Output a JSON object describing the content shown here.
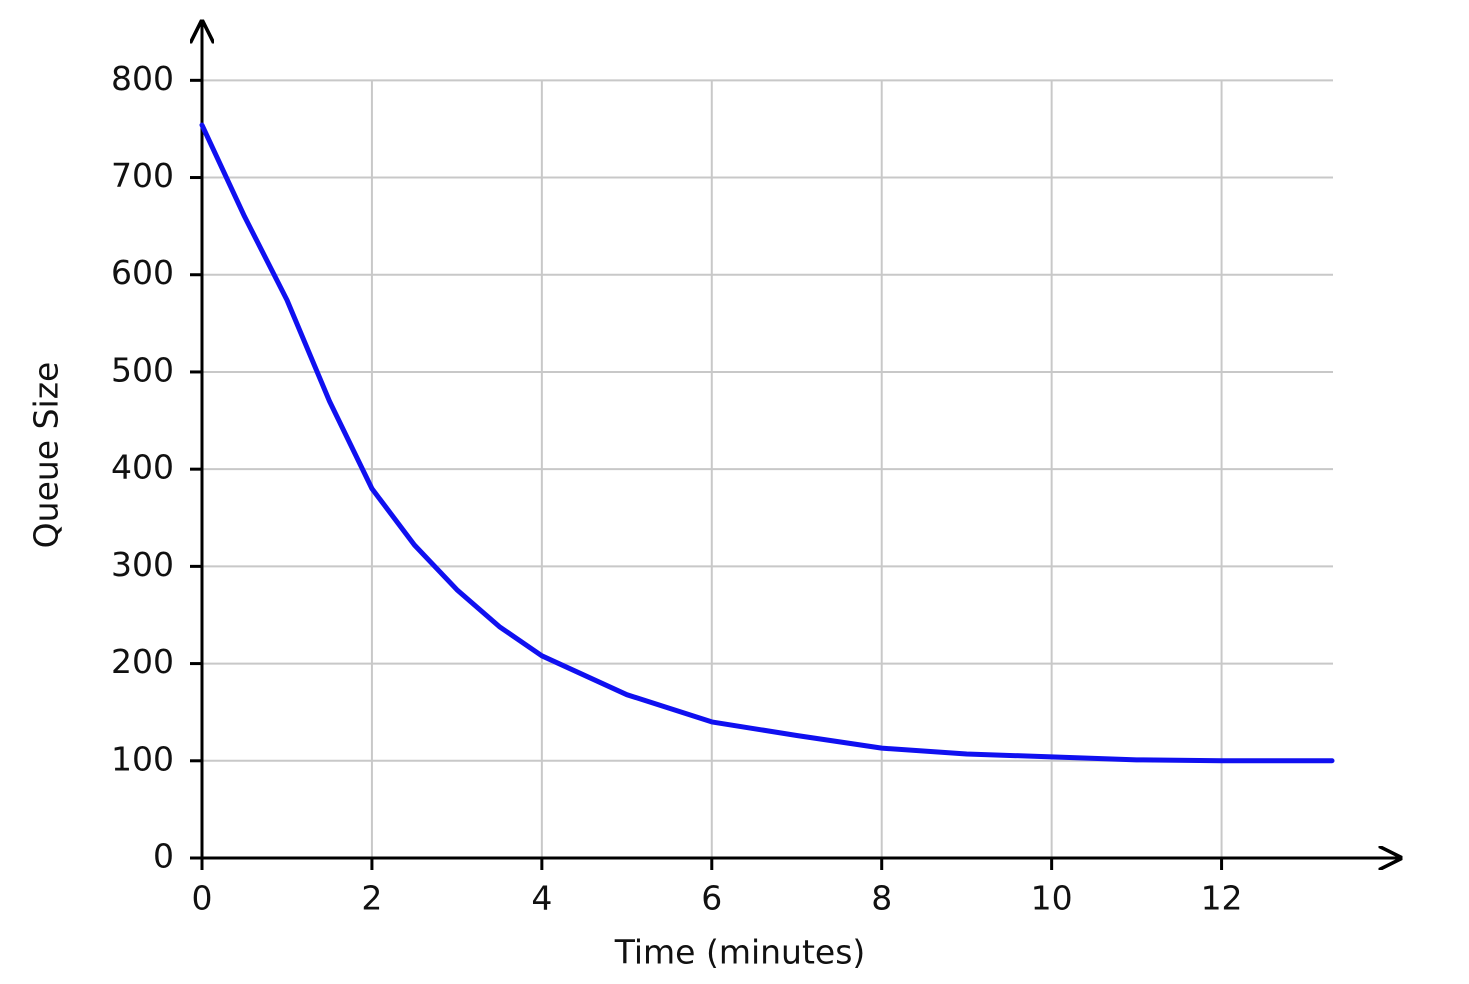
{
  "chart_data": {
    "type": "line",
    "x_label": "Time (minutes)",
    "y_label": "Queue Size",
    "x": [
      0,
      0.5,
      1,
      1.5,
      2,
      2.5,
      3,
      3.5,
      4,
      5,
      6,
      7,
      8,
      9,
      10,
      11,
      12,
      13.3
    ],
    "series": [
      {
        "name": "Queue Size",
        "color": "#1010f0",
        "values": [
          754,
          660,
          574,
          470,
          380,
          322,
          276,
          238,
          208,
          168,
          140,
          126,
          113,
          107,
          104,
          101,
          100,
          100
        ]
      }
    ],
    "xlim": [
      0,
      14.1
    ],
    "ylim": [
      0,
      860
    ],
    "xticks": [
      0,
      2,
      4,
      6,
      8,
      10,
      12
    ],
    "yticks": [
      0,
      100,
      200,
      300,
      400,
      500,
      600,
      700,
      800
    ],
    "grid": true
  }
}
